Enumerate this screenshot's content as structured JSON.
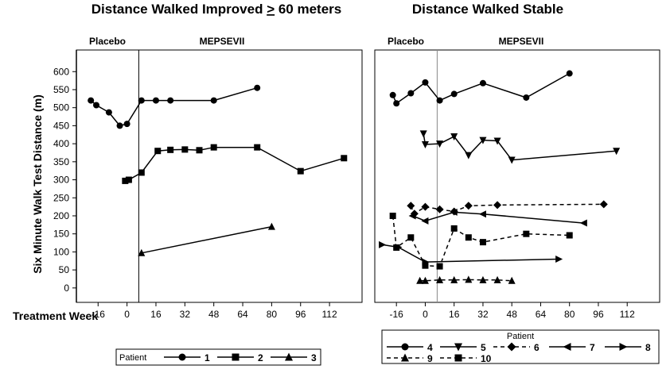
{
  "chart_data": [
    {
      "type": "line",
      "title_pre": "Distance Walked Improved ",
      "title_sym": ">",
      "title_post": " 60 meters",
      "phase_left": "Placebo",
      "phase_right": "MEPSEVII",
      "xlabel": "Treatment Week",
      "ylabel": "Six Minute Walk Test Distance (m)",
      "xlim": [
        -28,
        130
      ],
      "ylim": [
        -40,
        660
      ],
      "xticks": [
        -16,
        0,
        16,
        32,
        48,
        64,
        80,
        96,
        112
      ],
      "yticks": [
        0,
        50,
        100,
        150,
        200,
        250,
        300,
        350,
        400,
        450,
        500,
        550,
        600
      ],
      "legend_title": "Patient",
      "series": [
        {
          "name": "1",
          "marker": "circle",
          "dash": "solid",
          "x": [
            -20,
            -17,
            -10,
            -4,
            0,
            8,
            16,
            24,
            48,
            72
          ],
          "y": [
            520,
            507,
            487,
            450,
            455,
            520,
            520,
            520,
            520,
            555
          ]
        },
        {
          "name": "2",
          "marker": "square",
          "dash": "solid",
          "x": [
            -1,
            1,
            8,
            17,
            24,
            32,
            40,
            48,
            72,
            96,
            120
          ],
          "y": [
            297,
            300,
            320,
            380,
            383,
            384,
            382,
            390,
            390,
            324,
            360
          ]
        },
        {
          "name": "3",
          "marker": "triangle-up",
          "dash": "solid",
          "x": [
            8,
            80
          ],
          "y": [
            97,
            170
          ]
        }
      ]
    },
    {
      "type": "line",
      "title": "Distance Walked Stable",
      "phase_left": "Placebo",
      "phase_right": "MEPSEVII",
      "xlim": [
        -28,
        130
      ],
      "ylim": [
        -40,
        660
      ],
      "xticks": [
        -16,
        0,
        16,
        32,
        48,
        64,
        80,
        96,
        112
      ],
      "legend_title": "Patient",
      "series": [
        {
          "name": "4",
          "marker": "circle",
          "dash": "solid",
          "x": [
            -18,
            -16,
            -8,
            0,
            8,
            16,
            32,
            56,
            80
          ],
          "y": [
            535,
            512,
            540,
            570,
            520,
            538,
            568,
            528,
            595
          ]
        },
        {
          "name": "5",
          "marker": "triangle-down",
          "dash": "solid",
          "x": [
            -1,
            0,
            8,
            16,
            24,
            32,
            40,
            48,
            106
          ],
          "y": [
            428,
            398,
            400,
            420,
            368,
            410,
            408,
            355,
            380
          ]
        },
        {
          "name": "6",
          "marker": "diamond",
          "dash": "dashed",
          "x": [
            -8,
            -6,
            0,
            8,
            16,
            24,
            40,
            99
          ],
          "y": [
            228,
            206,
            225,
            218,
            212,
            228,
            230,
            232
          ]
        },
        {
          "name": "7",
          "marker": "triangle-left",
          "dash": "solid",
          "x": [
            -7,
            0,
            16,
            32,
            88
          ],
          "y": [
            200,
            186,
            210,
            205,
            180
          ]
        },
        {
          "name": "8",
          "marker": "triangle-right",
          "dash": "solid",
          "x": [
            -24,
            -15,
            0,
            74
          ],
          "y": [
            120,
            113,
            72,
            80
          ]
        },
        {
          "name": "9",
          "marker": "triangle-up",
          "dash": "dashed",
          "x": [
            -3,
            0,
            8,
            16,
            24,
            32,
            40,
            48
          ],
          "y": [
            20,
            20,
            22,
            22,
            23,
            22,
            22,
            20
          ]
        },
        {
          "name": "10",
          "marker": "square",
          "dash": "dashed",
          "x": [
            -18,
            -16,
            -8,
            0,
            8,
            16,
            24,
            32,
            56,
            80
          ],
          "y": [
            200,
            112,
            140,
            62,
            60,
            165,
            140,
            127,
            150,
            146
          ]
        }
      ]
    }
  ]
}
